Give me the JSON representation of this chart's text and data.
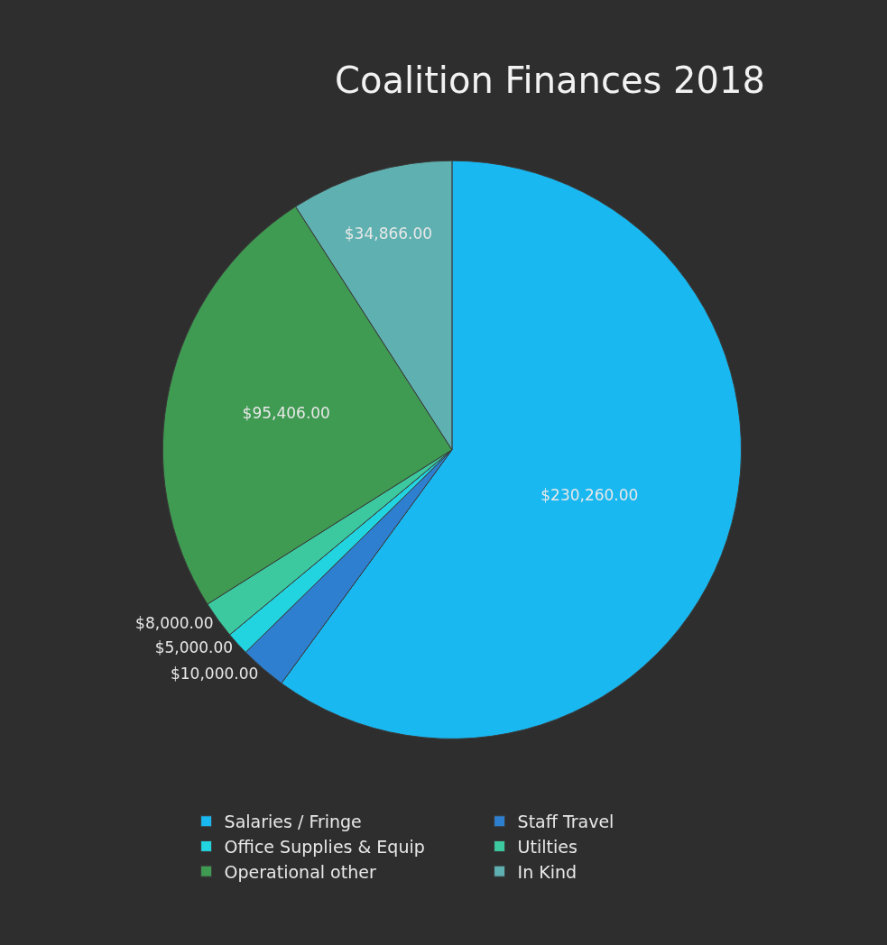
{
  "chart_data": {
    "type": "pie",
    "title": "Coalition Finances 2018",
    "categories": [
      "Salaries / Fringe",
      "Staff Travel",
      "Office Supplies & Equip",
      "Utilties",
      "Operational other",
      "In Kind"
    ],
    "values": [
      230260,
      10000,
      5000,
      8000,
      95406,
      34866
    ],
    "colors": [
      "#1ab8f0",
      "#2f7fd0",
      "#22d3e0",
      "#3cc9a0",
      "#3f9a52",
      "#5fb0b0"
    ],
    "value_labels": [
      "$230,260.00",
      "$10,000.00",
      "$5,000.00",
      "$8,000.00",
      "$95,406.00",
      "$34,866.00"
    ],
    "legend": "bottom"
  }
}
